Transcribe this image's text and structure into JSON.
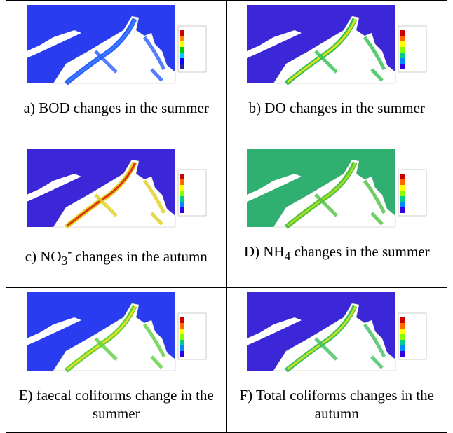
{
  "panels": [
    {
      "caption": {
        "text": "a) BOD changes in the summer"
      }
    },
    {
      "caption": {
        "text": "b) DO changes in the summer"
      }
    },
    {
      "caption": {
        "prefix": "c) NO",
        "sub": "3",
        "sup": "-",
        "suffix": " changes in the autumn"
      }
    },
    {
      "caption": {
        "prefix": "D) NH",
        "sub": "4",
        "suffix": " changes in the summer"
      }
    },
    {
      "caption": {
        "text": "E) faecal coliforms change in the summer"
      }
    },
    {
      "caption": {
        "text": "F) Total coliforms changes in the autumn"
      }
    }
  ]
}
